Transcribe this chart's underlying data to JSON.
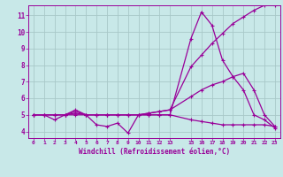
{
  "xlabel": "Windchill (Refroidissement éolien,°C)",
  "bg_color": "#c8e8e8",
  "line_color": "#990099",
  "grid_color": "#a8c8c8",
  "xlim": [
    -0.5,
    23.5
  ],
  "ylim": [
    3.6,
    11.6
  ],
  "yticks": [
    4,
    5,
    6,
    7,
    8,
    9,
    10,
    11
  ],
  "xticks": [
    0,
    1,
    2,
    3,
    4,
    5,
    6,
    7,
    8,
    9,
    10,
    11,
    12,
    13,
    15,
    16,
    17,
    18,
    19,
    20,
    21,
    22,
    23
  ],
  "series": [
    {
      "x": [
        0,
        1,
        2,
        3,
        4,
        5,
        6,
        7,
        8,
        9,
        10,
        11,
        12,
        13,
        15,
        16,
        17,
        18,
        19,
        20,
        21,
        22,
        23
      ],
      "y": [
        5.0,
        5.0,
        4.7,
        5.0,
        5.3,
        5.0,
        4.4,
        4.3,
        4.5,
        3.9,
        5.0,
        5.0,
        5.0,
        5.0,
        9.6,
        11.2,
        10.4,
        8.3,
        7.3,
        6.5,
        5.0,
        4.7,
        4.2
      ]
    },
    {
      "x": [
        0,
        1,
        2,
        3,
        4,
        5,
        6,
        7,
        8,
        9,
        10,
        11,
        12,
        13,
        15,
        16,
        17,
        18,
        19,
        20,
        21,
        22,
        23
      ],
      "y": [
        5.0,
        5.0,
        5.0,
        5.0,
        5.2,
        5.0,
        5.0,
        5.0,
        5.0,
        5.0,
        5.0,
        5.1,
        5.2,
        5.3,
        6.1,
        6.5,
        6.8,
        7.0,
        7.3,
        7.5,
        6.5,
        5.0,
        4.3
      ]
    },
    {
      "x": [
        0,
        1,
        2,
        3,
        4,
        5,
        6,
        7,
        8,
        9,
        10,
        11,
        12,
        13,
        15,
        16,
        17,
        18,
        19,
        20,
        21,
        22,
        23
      ],
      "y": [
        5.0,
        5.0,
        5.0,
        5.0,
        5.0,
        5.0,
        5.0,
        5.0,
        5.0,
        5.0,
        5.0,
        5.0,
        5.0,
        5.0,
        4.7,
        4.6,
        4.5,
        4.4,
        4.4,
        4.4,
        4.4,
        4.4,
        4.3
      ]
    },
    {
      "x": [
        0,
        1,
        2,
        3,
        4,
        5,
        6,
        7,
        8,
        9,
        10,
        11,
        12,
        13,
        15,
        16,
        17,
        18,
        19,
        20,
        21,
        22,
        23
      ],
      "y": [
        5.0,
        5.0,
        5.0,
        5.0,
        5.1,
        5.0,
        5.0,
        5.0,
        5.0,
        5.0,
        5.0,
        5.1,
        5.2,
        5.3,
        7.9,
        8.6,
        9.3,
        9.9,
        10.5,
        10.9,
        11.3,
        11.6,
        11.6
      ]
    }
  ]
}
